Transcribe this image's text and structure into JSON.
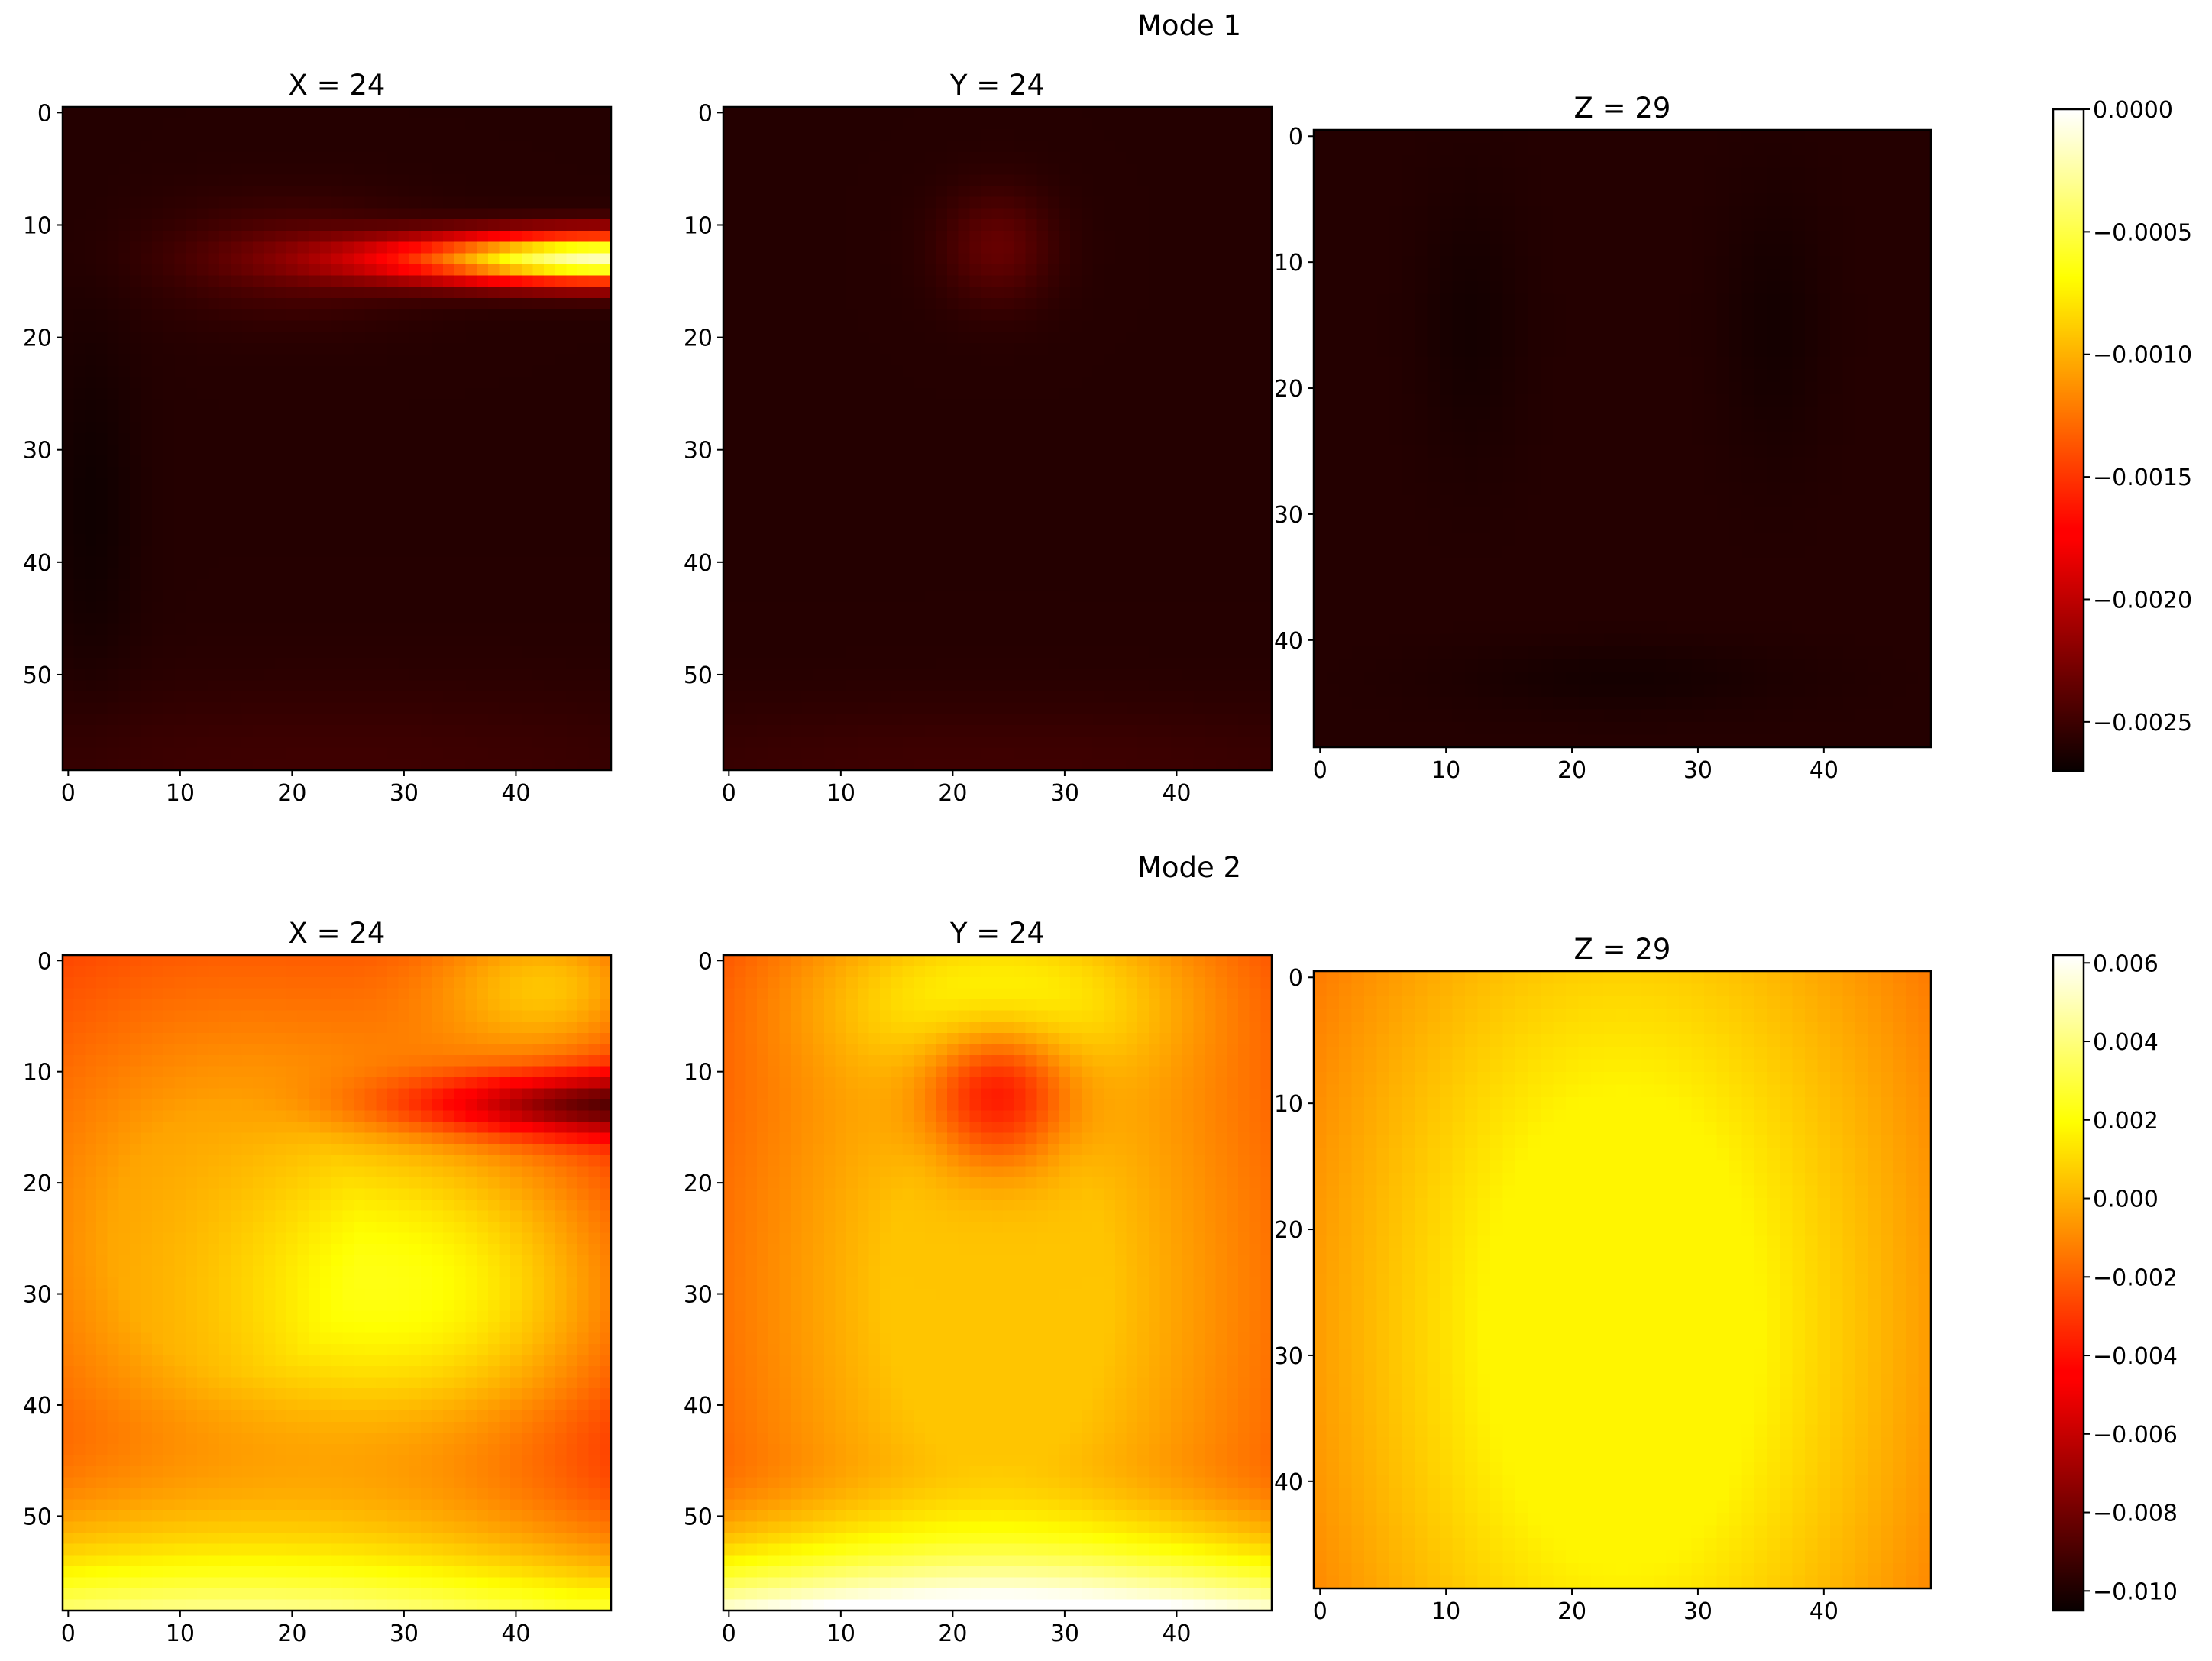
{
  "colors": {
    "colormap": "hot",
    "colormap_stops": [
      "#0b0000",
      "#ff0000",
      "#ffff00",
      "#ffffff"
    ],
    "frame": "#000000",
    "background": "#ffffff"
  },
  "chart_data": [
    {
      "type": "heatmap",
      "title": "Mode 1",
      "colorbar": {
        "range": [
          -0.0027,
          0.0
        ],
        "ticks": [
          -0.0025,
          -0.002,
          -0.0015,
          -0.001,
          -0.0005,
          0.0
        ],
        "tick_labels": [
          "−0.0025",
          "−0.0020",
          "−0.0015",
          "−0.0010",
          "−0.0005",
          "0.0000"
        ]
      },
      "panels": [
        {
          "title": "X = 24",
          "shape": [
            59,
            49
          ],
          "xlim": [
            -0.5,
            48.5
          ],
          "ylim": [
            58.5,
            -0.5
          ],
          "xticks": [
            0,
            10,
            20,
            30,
            40
          ],
          "yticks": [
            0,
            10,
            20,
            30,
            40,
            50
          ],
          "baseline": -0.0026,
          "blobs": [
            {
              "cx": 48,
              "cy": 13,
              "sx": 13,
              "sy": 1.6,
              "amp": 0.0024
            },
            {
              "cx": 20,
              "cy": 13,
              "sx": 8,
              "sy": 3.5,
              "amp": 0.0002
            },
            {
              "cx": 24,
              "cy": 58,
              "sx": 30,
              "sy": 5,
              "amp": 0.0001
            },
            {
              "cx": 2,
              "cy": 35,
              "sx": 3,
              "sy": 12,
              "amp": -8e-05
            }
          ]
        },
        {
          "title": "Y = 24",
          "shape": [
            59,
            49
          ],
          "xlim": [
            -0.5,
            48.5
          ],
          "ylim": [
            58.5,
            -0.5
          ],
          "xticks": [
            0,
            10,
            20,
            30,
            40
          ],
          "yticks": [
            0,
            10,
            20,
            30,
            40,
            50
          ],
          "baseline": -0.0026,
          "blobs": [
            {
              "cx": 24,
              "cy": 12,
              "sx": 3.5,
              "sy": 3.5,
              "amp": 0.00025
            },
            {
              "cx": 24,
              "cy": 58,
              "sx": 30,
              "sy": 4,
              "amp": 0.0001
            }
          ]
        },
        {
          "title": "Z = 29",
          "shape": [
            49,
            49
          ],
          "xlim": [
            -0.5,
            48.5
          ],
          "ylim": [
            48.5,
            -0.5
          ],
          "xticks": [
            0,
            10,
            20,
            30,
            40
          ],
          "yticks": [
            0,
            10,
            20,
            30,
            40
          ],
          "ytick_labels": [
            "0",
            "10",
            "20",
            "30",
            "40"
          ],
          "baseline": -0.0026,
          "blobs": [
            {
              "cx": 12,
              "cy": 15,
              "sx": 3,
              "sy": 8,
              "amp": -6e-05
            },
            {
              "cx": 36,
              "cy": 15,
              "sx": 3,
              "sy": 8,
              "amp": -6e-05
            },
            {
              "cx": 24,
              "cy": 43,
              "sx": 10,
              "sy": 2,
              "amp": -6e-05
            }
          ]
        }
      ]
    },
    {
      "type": "heatmap",
      "title": "Mode 2",
      "colorbar": {
        "range": [
          -0.0105,
          0.0062
        ],
        "ticks": [
          -0.01,
          -0.008,
          -0.006,
          -0.004,
          -0.002,
          0.0,
          0.002,
          0.004,
          0.006
        ],
        "tick_labels": [
          "−0.010",
          "−0.008",
          "−0.006",
          "−0.004",
          "−0.002",
          "0.000",
          "0.002",
          "0.004",
          "0.006"
        ]
      },
      "panels": [
        {
          "title": "X = 24",
          "shape": [
            59,
            49
          ],
          "xlim": [
            -0.5,
            48.5
          ],
          "ylim": [
            58.5,
            -0.5
          ],
          "xticks": [
            0,
            10,
            20,
            30,
            40
          ],
          "yticks": [
            0,
            10,
            20,
            30,
            40,
            50
          ],
          "baseline": -0.0045,
          "ramp": {
            "cx": 15,
            "cy": 25,
            "sx": 11,
            "sy": 12,
            "amp": 0.004
          },
          "gradient": {
            "y0": 40,
            "y1": 58,
            "amp": 0.007
          },
          "blobs": [
            {
              "cx": 47,
              "cy": 13,
              "sx": 12,
              "sy": 2,
              "amp": -0.006
            },
            {
              "cx": 44,
              "cy": 2,
              "sx": 8,
              "sy": 5,
              "amp": 0.004
            },
            {
              "cx": 35,
              "cy": 30,
              "sx": 14,
              "sy": 10,
              "amp": 0.0035
            }
          ]
        },
        {
          "title": "Y = 24",
          "shape": [
            59,
            49
          ],
          "xlim": [
            -0.5,
            48.5
          ],
          "ylim": [
            58.5,
            -0.5
          ],
          "xticks": [
            0,
            10,
            20,
            30,
            40
          ],
          "yticks": [
            0,
            10,
            20,
            30,
            40,
            50
          ],
          "baseline": -0.0035,
          "ramp": {
            "cx": 24,
            "cy": 30,
            "sx": 10,
            "sy": 16,
            "amp": 0.004
          },
          "gradient": {
            "y0": 44,
            "y1": 58,
            "amp": 0.0075
          },
          "blobs": [
            {
              "cx": 24,
              "cy": 12,
              "sx": 4.5,
              "sy": 4.5,
              "amp": -0.0045
            },
            {
              "cx": 24,
              "cy": 3,
              "sx": 12,
              "sy": 5,
              "amp": 0.0025
            }
          ]
        },
        {
          "title": "Z = 29",
          "shape": [
            49,
            49
          ],
          "xlim": [
            -0.5,
            48.5
          ],
          "ylim": [
            48.5,
            -0.5
          ],
          "xticks": [
            0,
            10,
            20,
            30,
            40
          ],
          "yticks": [
            0,
            10,
            20,
            30,
            40
          ],
          "ytick_labels": [
            "0",
            "10",
            "20",
            "30",
            "40"
          ],
          "baseline": -0.0035,
          "ramp": {
            "cx": 24,
            "cy": 28,
            "sx": 11,
            "sy": 19,
            "amp": 0.0052
          },
          "blobs": []
        }
      ]
    }
  ]
}
